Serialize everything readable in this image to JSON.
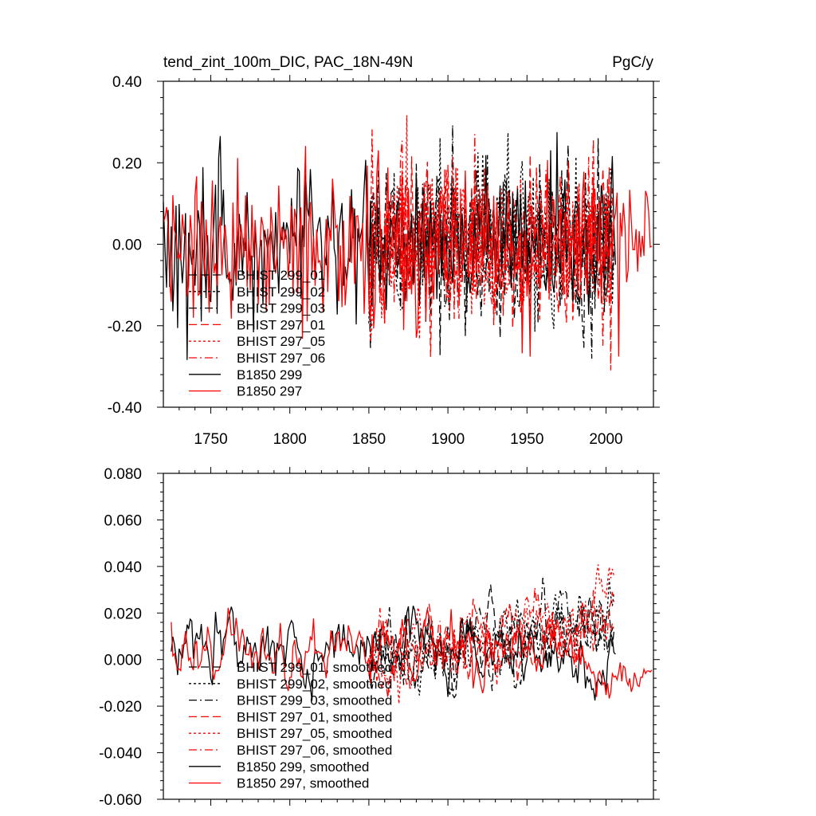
{
  "colors": {
    "black": "#000000",
    "red": "#ff0000"
  },
  "chart_data": [
    {
      "type": "line",
      "title": "tend_zint_100m_DIC, PAC_18N-49N",
      "units": "PgC/y",
      "xlim": [
        1720,
        2030
      ],
      "ylim": [
        -0.4,
        0.4
      ],
      "x_ticks": [
        1750,
        1800,
        1850,
        1900,
        1950,
        2000
      ],
      "y_ticks": [
        -0.4,
        -0.2,
        0.0,
        0.2,
        0.4
      ],
      "y_tick_labels": [
        "-0.40",
        "-0.20",
        "0.00",
        "0.20",
        "0.40"
      ],
      "legend_position": "lower-left",
      "series": [
        {
          "name": "BHIST 299_01",
          "color": "black",
          "dash": "longdash",
          "x_range": [
            1850,
            2005
          ],
          "amplitude": 0.11,
          "seed": 11
        },
        {
          "name": "BHIST 299_02",
          "color": "black",
          "dash": "dot",
          "x_range": [
            1850,
            2005
          ],
          "amplitude": 0.11,
          "seed": 12
        },
        {
          "name": "BHIST 299_03",
          "color": "black",
          "dash": "dashdot",
          "x_range": [
            1850,
            2005
          ],
          "amplitude": 0.11,
          "seed": 13
        },
        {
          "name": "BHIST 297_01",
          "color": "red",
          "dash": "longdash",
          "x_range": [
            1850,
            2005
          ],
          "amplitude": 0.11,
          "seed": 21
        },
        {
          "name": "BHIST 297_05",
          "color": "red",
          "dash": "dot",
          "x_range": [
            1850,
            2005
          ],
          "amplitude": 0.11,
          "seed": 22
        },
        {
          "name": "BHIST 297_06",
          "color": "red",
          "dash": "dashdot",
          "x_range": [
            1850,
            2005
          ],
          "amplitude": 0.11,
          "seed": 23
        },
        {
          "name": "B1850 299",
          "color": "black",
          "dash": "solid",
          "x_range": [
            1720,
            2006
          ],
          "amplitude": 0.1,
          "seed": 31
        },
        {
          "name": "B1850 297",
          "color": "red",
          "dash": "solid",
          "x_range": [
            1720,
            2029
          ],
          "amplitude": 0.1,
          "seed": 41
        }
      ]
    },
    {
      "type": "line",
      "title": "",
      "units": "",
      "xlim": [
        1720,
        2030
      ],
      "ylim": [
        -0.06,
        0.08
      ],
      "x_ticks": [
        1750,
        1800,
        1850,
        1900,
        1950,
        2000
      ],
      "y_ticks": [
        -0.06,
        -0.04,
        -0.02,
        0.0,
        0.02,
        0.04,
        0.06,
        0.08
      ],
      "y_tick_labels": [
        "-0.060",
        "-0.040",
        "-0.020",
        "0.000",
        "0.020",
        "0.040",
        "0.060",
        "0.080"
      ],
      "legend_position": "lower-left",
      "series": [
        {
          "name": "BHIST 299_01, smoothed",
          "color": "black",
          "dash": "longdash",
          "x_range": [
            1850,
            2005
          ],
          "amplitude": 0.012,
          "seed": 51
        },
        {
          "name": "BHIST 299_02, smoothed",
          "color": "black",
          "dash": "dot",
          "x_range": [
            1850,
            2005
          ],
          "amplitude": 0.012,
          "seed": 52
        },
        {
          "name": "BHIST 299_03, smoothed",
          "color": "black",
          "dash": "dashdot",
          "x_range": [
            1850,
            2005
          ],
          "amplitude": 0.012,
          "seed": 53
        },
        {
          "name": "BHIST 297_01, smoothed",
          "color": "red",
          "dash": "longdash",
          "x_range": [
            1850,
            2005
          ],
          "amplitude": 0.012,
          "seed": 61
        },
        {
          "name": "BHIST 297_05, smoothed",
          "color": "red",
          "dash": "dot",
          "x_range": [
            1850,
            2005
          ],
          "amplitude": 0.012,
          "seed": 62
        },
        {
          "name": "BHIST 297_06, smoothed",
          "color": "red",
          "dash": "dashdot",
          "x_range": [
            1850,
            2005
          ],
          "amplitude": 0.012,
          "seed": 63
        },
        {
          "name": "B1850 299, smoothed",
          "color": "black",
          "dash": "solid",
          "x_range": [
            1725,
            2006
          ],
          "amplitude": 0.011,
          "seed": 71
        },
        {
          "name": "B1850 297, smoothed",
          "color": "red",
          "dash": "solid",
          "x_range": [
            1725,
            2029
          ],
          "amplitude": 0.011,
          "seed": 81
        }
      ]
    }
  ]
}
